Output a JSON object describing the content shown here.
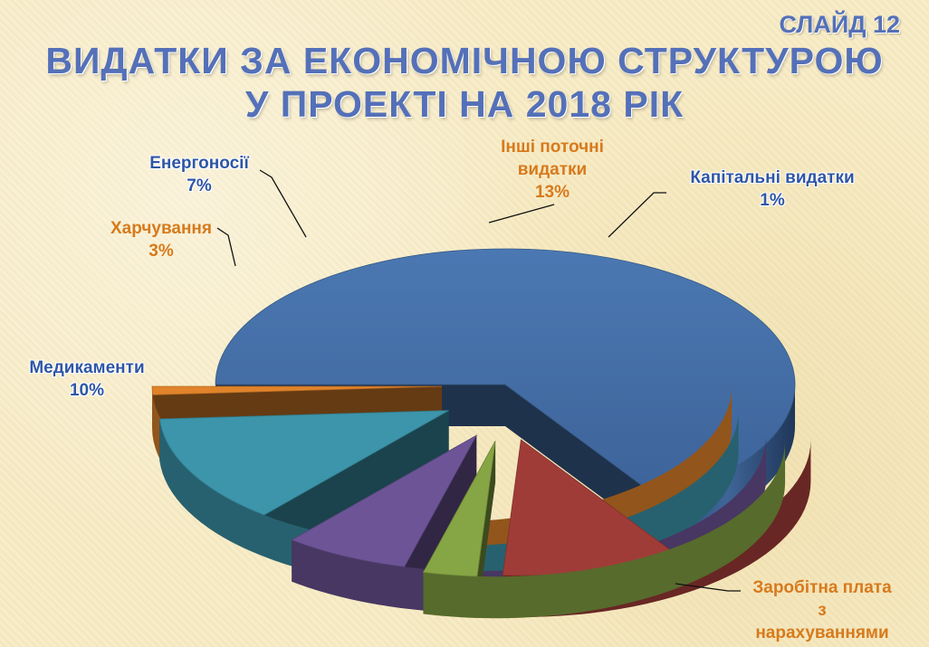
{
  "slide_label": "СЛАЙД 12",
  "title_line1": "ВИДАТКИ ЗА ЕКОНОМІЧНОЮ СТРУКТУРОЮ",
  "title_line2": "У ПРОЕКТІ НА 2018 РІК",
  "chart_data": {
    "type": "pie",
    "style": "3d-exploded",
    "slices": [
      {
        "label": "Заробітна плата з нарахуваннями",
        "value": 66,
        "value_label": "",
        "color": "#4470a8"
      },
      {
        "label": "Медикаменти",
        "value": 10,
        "value_label": "10%",
        "color": "#a03c38"
      },
      {
        "label": "Харчування",
        "value": 3,
        "value_label": "3%",
        "color": "#86a544"
      },
      {
        "label": "Енергоносії",
        "value": 7,
        "value_label": "7%",
        "color": "#6d5497"
      },
      {
        "label": "Інші поточні видатки",
        "value": 13,
        "value_label": "13%",
        "color": "#3c95aa"
      },
      {
        "label": "Капітальні видатки",
        "value": 1,
        "value_label": "1%",
        "color": "#e0832a"
      }
    ]
  },
  "labels": {
    "salary_l1": "Заробітна плата",
    "salary_l2": "з",
    "salary_l3": "нарахуваннями",
    "med_name": "Медикаменти",
    "food_name": "Харчування",
    "energy_name": "Енергоносії",
    "other_l1": "Інші поточні",
    "other_l2": "видатки",
    "capital_name": "Капітальні  видатки"
  }
}
